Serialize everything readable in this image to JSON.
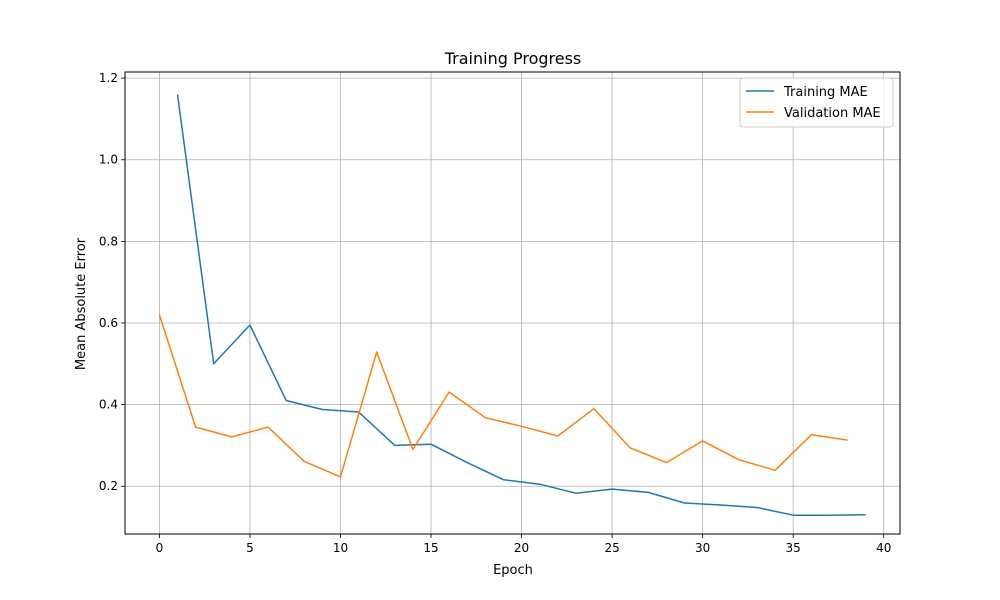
{
  "chart_data": {
    "type": "line",
    "title": "Training Progress",
    "xlabel": "Epoch",
    "ylabel": "Mean Absolute Error",
    "xlim": [
      -1.9,
      40.9
    ],
    "ylim": [
      0.083,
      1.215
    ],
    "xticks": [
      0,
      5,
      10,
      15,
      20,
      25,
      30,
      35,
      40
    ],
    "yticks": [
      0.2,
      0.4,
      0.6,
      0.8,
      1.0,
      1.2
    ],
    "ytick_labels": [
      "0.2",
      "0.4",
      "0.6",
      "0.8",
      "1.0",
      "1.2"
    ],
    "grid": true,
    "legend_position": "top-right",
    "series": [
      {
        "name": "Training MAE",
        "color": "#1f77b4",
        "x": [
          1,
          3,
          5,
          7,
          9,
          11,
          13,
          15,
          17,
          19,
          21,
          23,
          25,
          27,
          29,
          31,
          33,
          35,
          37,
          39
        ],
        "values": [
          1.16,
          0.5,
          0.595,
          0.41,
          0.388,
          0.382,
          0.3,
          0.303,
          0.258,
          0.216,
          0.205,
          0.183,
          0.193,
          0.185,
          0.159,
          0.154,
          0.148,
          0.129,
          0.129,
          0.13
        ]
      },
      {
        "name": "Validation MAE",
        "color": "#ff7f0e",
        "x": [
          0,
          2,
          4,
          6,
          8,
          10,
          12,
          14,
          16,
          18,
          20,
          22,
          24,
          26,
          28,
          30,
          32,
          34,
          36,
          38
        ],
        "values": [
          0.62,
          0.345,
          0.321,
          0.345,
          0.261,
          0.223,
          0.529,
          0.29,
          0.431,
          0.368,
          0.347,
          0.323,
          0.39,
          0.294,
          0.258,
          0.311,
          0.265,
          0.239,
          0.326,
          0.313
        ]
      }
    ]
  }
}
